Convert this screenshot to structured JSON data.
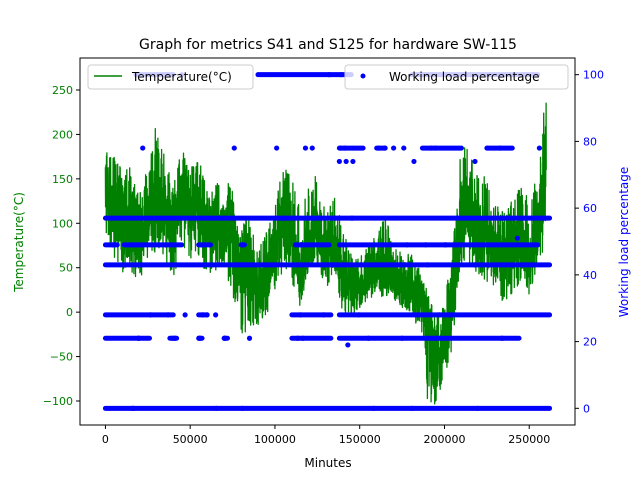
{
  "chart_data": {
    "type": "line",
    "title": "Graph for metrics S41 and S125 for hardware SW-115",
    "xlabel": "Minutes",
    "xlim": [
      -15000,
      277000
    ],
    "xticks": [
      0,
      50000,
      100000,
      150000,
      200000,
      250000
    ],
    "xtick_labels": [
      "0",
      "50000",
      "100000",
      "150000",
      "200000",
      "250000"
    ],
    "left_axis": {
      "label": "Temperature(°C)",
      "color": "#008000",
      "ylim": [
        -127,
        286
      ],
      "ticks": [
        -100,
        -50,
        0,
        50,
        100,
        150,
        200,
        250
      ],
      "tick_labels": [
        "−100",
        "−50",
        "0",
        "50",
        "100",
        "150",
        "200",
        "250"
      ]
    },
    "right_axis": {
      "label": "Working load percentage",
      "color": "#0000ff",
      "ylim": [
        -5,
        105
      ],
      "ticks": [
        0,
        20,
        40,
        60,
        80,
        100
      ],
      "tick_labels": [
        "0",
        "20",
        "40",
        "60",
        "80",
        "100"
      ]
    },
    "series": [
      {
        "name": "Temperature(°C)",
        "kind": "line",
        "axis": "left",
        "color": "#008000",
        "x": [
          0,
          5000,
          10000,
          15000,
          20000,
          25000,
          30000,
          35000,
          40000,
          45000,
          50000,
          55000,
          60000,
          65000,
          70000,
          75000,
          80000,
          85000,
          90000,
          95000,
          100000,
          105000,
          110000,
          115000,
          120000,
          125000,
          130000,
          135000,
          140000,
          145000,
          150000,
          155000,
          160000,
          165000,
          170000,
          175000,
          180000,
          185000,
          190000,
          195000,
          200000,
          205000,
          210000,
          215000,
          220000,
          225000,
          230000,
          235000,
          240000,
          245000,
          250000,
          255000,
          260000
        ],
        "values": [
          145,
          110,
          100,
          95,
          85,
          105,
          130,
          110,
          90,
          140,
          110,
          120,
          95,
          100,
          95,
          85,
          45,
          60,
          20,
          45,
          70,
          110,
          85,
          40,
          80,
          95,
          60,
          80,
          35,
          30,
          30,
          40,
          50,
          45,
          40,
          35,
          30,
          20,
          0,
          -60,
          -30,
          20,
          120,
          110,
          100,
          90,
          70,
          60,
          70,
          80,
          60,
          90,
          160
        ],
        "lo": [
          90,
          55,
          45,
          35,
          40,
          45,
          70,
          60,
          40,
          70,
          50,
          60,
          40,
          45,
          45,
          20,
          -30,
          -15,
          -15,
          -5,
          20,
          50,
          30,
          5,
          40,
          55,
          25,
          40,
          0,
          -5,
          5,
          10,
          20,
          15,
          15,
          5,
          0,
          -20,
          -100,
          -105,
          -75,
          -40,
          55,
          55,
          40,
          35,
          25,
          10,
          20,
          35,
          20,
          40,
          80
        ],
        "hi": [
          185,
          175,
          160,
          165,
          130,
          170,
          215,
          175,
          140,
          185,
          165,
          175,
          140,
          145,
          150,
          140,
          105,
          105,
          65,
          100,
          120,
          165,
          150,
          115,
          145,
          155,
          110,
          130,
          95,
          70,
          60,
          80,
          90,
          110,
          80,
          65,
          70,
          50,
          20,
          0,
          20,
          80,
          190,
          185,
          160,
          150,
          120,
          115,
          125,
          150,
          125,
          160,
          255
        ]
      },
      {
        "name": "Working load percentage",
        "kind": "scatter",
        "axis": "right",
        "color": "#0000ff",
        "levels": [
          {
            "y": 0,
            "segments": [
              [
                0,
                262000
              ]
            ]
          },
          {
            "y": 21,
            "segments": [
              [
                0,
                26000
              ],
              [
                38000,
                42000
              ],
              [
                55000,
                57000
              ],
              [
                70000,
                72000
              ],
              [
                110000,
                133000
              ],
              [
                138000,
                244000
              ]
            ]
          },
          {
            "y": 28,
            "segments": [
              [
                0,
                40000
              ],
              [
                55000,
                60000
              ],
              [
                110000,
                133000
              ],
              [
                138000,
                262000
              ]
            ]
          },
          {
            "y": 43,
            "segments": [
              [
                0,
                262000
              ]
            ]
          },
          {
            "y": 49,
            "segments": [
              [
                0,
                7000
              ],
              [
                11000,
                45000
              ],
              [
                55000,
                62000
              ],
              [
                80000,
                82000
              ],
              [
                112000,
                132000
              ],
              [
                138000,
                255000
              ]
            ]
          },
          {
            "y": 57,
            "segments": [
              [
                0,
                262000
              ]
            ]
          },
          {
            "y": 78,
            "segments": [
              [
                138000,
                152000
              ],
              [
                160000,
                165000
              ],
              [
                187000,
                210000
              ],
              [
                225000,
                240000
              ]
            ]
          },
          {
            "y": 100,
            "segments": [
              [
                18000,
                40000
              ],
              [
                90000,
                145000
              ],
              [
                181000,
                255000
              ]
            ]
          }
        ],
        "sparse_points": [
          [
            22000,
            78
          ],
          [
            76000,
            78
          ],
          [
            101000,
            78
          ],
          [
            118000,
            78
          ],
          [
            122000,
            78
          ],
          [
            138000,
            74
          ],
          [
            142000,
            74
          ],
          [
            146000,
            74
          ],
          [
            170000,
            78
          ],
          [
            176000,
            78
          ],
          [
            182000,
            74
          ],
          [
            218000,
            74
          ],
          [
            256000,
            78
          ],
          [
            85000,
            21
          ],
          [
            143000,
            19
          ],
          [
            65000,
            28
          ],
          [
            47000,
            28
          ],
          [
            195000,
            21
          ],
          [
            243000,
            51
          ],
          [
            45000,
            100
          ],
          [
            252000,
            100
          ],
          [
            175000,
            21
          ],
          [
            178000,
            49
          ]
        ]
      }
    ],
    "legends": [
      {
        "position": "top-left",
        "entry": "Temperature(°C)",
        "marker": "line",
        "color": "#008000"
      },
      {
        "position": "top-right",
        "entry": "Working load percentage",
        "marker": "dot",
        "color": "#0000ff"
      }
    ]
  }
}
